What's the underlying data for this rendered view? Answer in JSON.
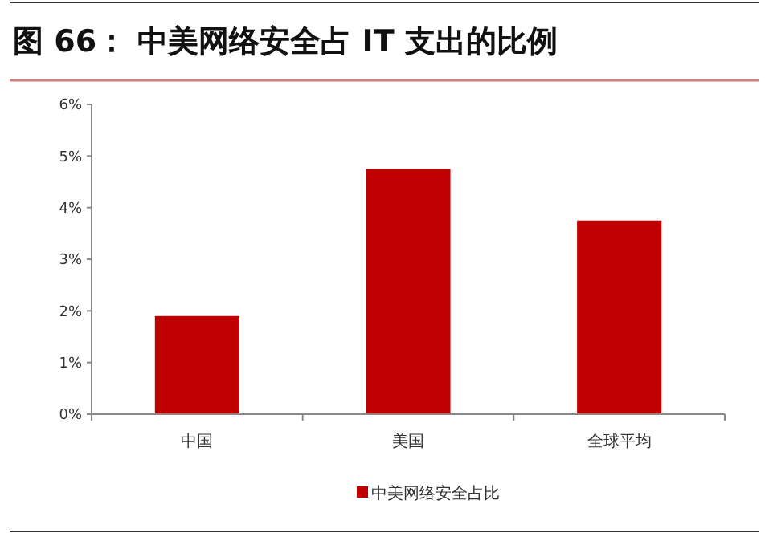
{
  "chart_data": {
    "type": "bar",
    "title": "图 66：  中美网络安全占 IT 支出的比例",
    "categories": [
      "中国",
      "美国",
      "全球平均"
    ],
    "series": [
      {
        "name": "中美网络安全占比",
        "color": "#c00000",
        "values": [
          1.9,
          4.75,
          3.75
        ]
      }
    ],
    "ylim": [
      0,
      6
    ],
    "yticks": [
      {
        "value": 0,
        "label": "0%"
      },
      {
        "value": 1,
        "label": "1%"
      },
      {
        "value": 2,
        "label": "2%"
      },
      {
        "value": 3,
        "label": "3%"
      },
      {
        "value": 4,
        "label": "4%"
      },
      {
        "value": 5,
        "label": "5%"
      },
      {
        "value": 6,
        "label": "6%"
      }
    ],
    "grid": false,
    "legend": "bottom"
  }
}
